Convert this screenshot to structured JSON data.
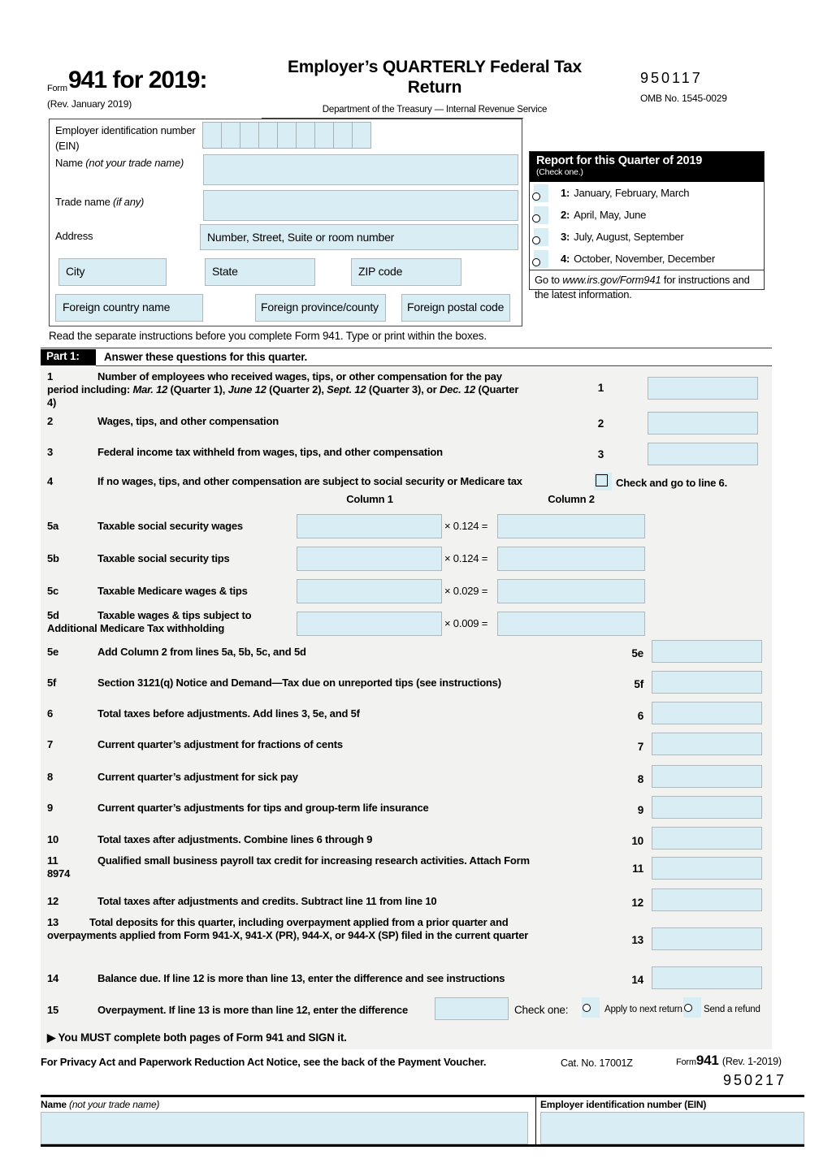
{
  "colors": {
    "input_blue": "#d9edf4",
    "input_border": "#afb8bc",
    "section_gray": "#f2f2f0",
    "bar_black": "#000000"
  },
  "header": {
    "form_word": "Form",
    "form_number": "941 for 2019:",
    "rev": "(Rev. January 2019)",
    "title_line1": "Employer’s QUARTERLY Federal Tax",
    "title_line2": "Return",
    "department": "Department of the Treasury — Internal Revenue Service",
    "code": "950117",
    "omb": "OMB No. 1545-0029"
  },
  "employer": {
    "ein_label": "Employer identification number (EIN)",
    "ein_cells": 9,
    "name_label": [
      {
        "t": "Name "
      },
      {
        "t": "(not your trade name)",
        "i": 1
      }
    ],
    "trade_label": [
      {
        "t": "Trade name "
      },
      {
        "t": "(if any)",
        "i": 1
      }
    ],
    "address_label": "Address",
    "address_hint": "Number, Street, Suite or room number",
    "city": "City",
    "state": "State",
    "zip": "ZIP code",
    "foreign_country": "Foreign country name",
    "foreign_province": "Foreign province/county",
    "foreign_postal": "Foreign postal code"
  },
  "quarter_box": {
    "title": "Report for this Quarter of 2019",
    "subtitle": "(Check one.)",
    "options": [
      {
        "num": "1:",
        "label": "January, February, March"
      },
      {
        "num": "2:",
        "label": "April, May, June"
      },
      {
        "num": "3:",
        "label": "July, August, September"
      },
      {
        "num": "4:",
        "label": "October, November, December"
      }
    ],
    "footer": [
      {
        "t": "Go to "
      },
      {
        "t": "www.irs.gov/Form941",
        "i": 1
      },
      {
        "t": " for instructions and the latest information."
      }
    ]
  },
  "instructions": "Read the separate instructions before you complete Form 941. Type or print within the boxes.",
  "part1": {
    "tag": "Part 1:",
    "heading": "Answer these questions for this quarter.",
    "line1": {
      "num": "1",
      "ref": "1",
      "text": [
        {
          "t": "Number of employees who received wages, tips, or other compensation for the pay period including: ",
          "b": 1
        },
        {
          "t": "Mar. 12",
          "b": 1,
          "i": 1
        },
        {
          "t": " (Quarter 1), ",
          "b": 1
        },
        {
          "t": "June 12",
          "b": 1,
          "i": 1
        },
        {
          "t": " (Quarter 2), ",
          "b": 1
        },
        {
          "t": "Sept. 12",
          "b": 1,
          "i": 1
        },
        {
          "t": " (Quarter 3), or ",
          "b": 1
        },
        {
          "t": "Dec. 12",
          "b": 1,
          "i": 1
        },
        {
          "t": " (Quarter 4)",
          "b": 1
        }
      ]
    },
    "line2": {
      "num": "2",
      "ref": "2",
      "text": [
        {
          "t": "Wages, tips, and other compensation",
          "b": 1
        }
      ]
    },
    "line3": {
      "num": "3",
      "ref": "3",
      "text": [
        {
          "t": "Federal income tax withheld from wages, tips, and other compensation",
          "b": 1
        }
      ]
    },
    "line4": {
      "num": "4",
      "text": [
        {
          "t": "If no wages, tips, and other compensation are subject to social security or Medicare tax",
          "b": 1
        }
      ],
      "check_label": "Check and go to line 6."
    },
    "column1": "Column 1",
    "column2": "Column 2",
    "line5a": {
      "num": "5a",
      "text": [
        {
          "t": "Taxable social security wages",
          "b": 1
        }
      ],
      "mult": "× 0.124 ="
    },
    "line5b": {
      "num": "5b",
      "text": [
        {
          "t": "Taxable social security tips",
          "b": 1
        }
      ],
      "mult": "× 0.124 ="
    },
    "line5c": {
      "num": "5c",
      "text": [
        {
          "t": "Taxable Medicare wages & tips",
          "b": 1
        }
      ],
      "mult": "× 0.029 ="
    },
    "line5d": {
      "num": "5d",
      "text": [
        {
          "t": "Taxable wages & tips subject to Additional Medicare Tax withholding",
          "b": 1
        }
      ],
      "mult": "× 0.009 ="
    },
    "line5e": {
      "num": "5e",
      "ref": "5e",
      "text": [
        {
          "t": "Add Column 2 from lines 5a, 5b, 5c, and 5d",
          "b": 1
        }
      ]
    },
    "line5f": {
      "num": "5f",
      "ref": "5f",
      "text": [
        {
          "t": "Section 3121(q) Notice and Demand—Tax due on unreported tips ",
          "b": 1
        },
        {
          "t": "(see instructions)"
        }
      ]
    },
    "line6": {
      "num": "6",
      "ref": "6",
      "text": [
        {
          "t": "Total taxes before adjustments. ",
          "b": 1
        },
        {
          "t": "Add lines 3, 5e, and 5f"
        }
      ]
    },
    "line7": {
      "num": "7",
      "ref": "7",
      "text": [
        {
          "t": "Current quarter’s adjustment for fractions of cents",
          "b": 1
        }
      ]
    },
    "line8": {
      "num": "8",
      "ref": "8",
      "text": [
        {
          "t": "Current quarter’s adjustment for sick pay",
          "b": 1
        }
      ]
    },
    "line9": {
      "num": "9",
      "ref": "9",
      "text": [
        {
          "t": "Current quarter’s adjustments for tips and group-term life insurance",
          "b": 1
        }
      ]
    },
    "line10": {
      "num": "10",
      "ref": "10",
      "text": [
        {
          "t": "Total taxes after adjustments. ",
          "b": 1
        },
        {
          "t": "Combine lines 6 through 9"
        }
      ]
    },
    "line11": {
      "num": "11",
      "ref": "11",
      "text": [
        {
          "t": "Qualified small business payroll tax credit for increasing research activities. ",
          "b": 1
        },
        {
          "t": "Attach Form 8974"
        }
      ]
    },
    "line12": {
      "num": "12",
      "ref": "12",
      "text": [
        {
          "t": "Total taxes after adjustments and credits. ",
          "b": 1
        },
        {
          "t": "Subtract line 11 from line 10"
        }
      ]
    },
    "line13": {
      "num": "13",
      "ref": "13",
      "text": [
        {
          "t": "Total deposits for this quarter, including overpayment applied from a prior quarter and overpayments applied from Form 941-X, 941-X (PR), 944-X, or 944-X (SP) filed in the current quarter",
          "b": 1
        }
      ]
    },
    "line14": {
      "num": "14",
      "ref": "14",
      "text": [
        {
          "t": "Balance due. ",
          "b": 1
        },
        {
          "t": "If line 12 is more than line 13, enter the difference and see instructions"
        }
      ]
    },
    "line15": {
      "num": "15",
      "text": [
        {
          "t": "Overpayment. ",
          "b": 1
        },
        {
          "t": "If line 13 is more than line 12, enter the difference"
        }
      ],
      "check_one": "Check one:",
      "opt1": "Apply to next return.",
      "opt2": "Send a refund"
    },
    "must_note": [
      {
        "t": "▶ ",
        "b": 1
      },
      {
        "t": "You MUST complete both pages of Form 941 and SIGN it.",
        "b": 1
      }
    ]
  },
  "footer": {
    "privacy": "For Privacy Act and Paperwork Reduction Act Notice, see the back of the Payment Voucher.",
    "cat": "Cat. No. 17001Z",
    "form_word": "Form",
    "form_number": "941",
    "rev": "(Rev. 1-2019)",
    "code": "950217"
  },
  "bottom": {
    "name_label": [
      {
        "t": "Name ",
        "b": 1
      },
      {
        "t": "(not your trade name)",
        "i": 1
      }
    ],
    "ein_label": "Employer identification number (EIN)"
  }
}
